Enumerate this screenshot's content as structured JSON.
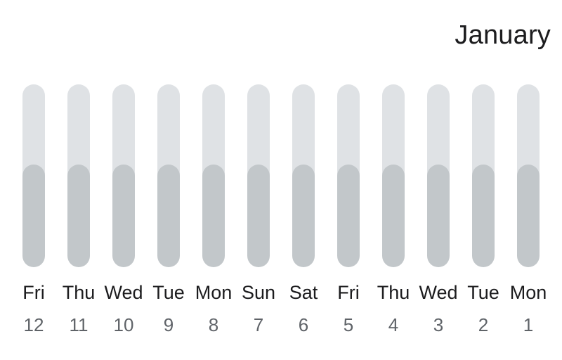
{
  "month": "January",
  "days": [
    {
      "weekday": "Fri",
      "date": "12",
      "level": 0.56
    },
    {
      "weekday": "Thu",
      "date": "11",
      "level": 0.56
    },
    {
      "weekday": "Wed",
      "date": "10",
      "level": 0.56
    },
    {
      "weekday": "Tue",
      "date": "9",
      "level": 0.56
    },
    {
      "weekday": "Mon",
      "date": "8",
      "level": 0.56
    },
    {
      "weekday": "Sun",
      "date": "7",
      "level": 0.56
    },
    {
      "weekday": "Sat",
      "date": "6",
      "level": 0.56
    },
    {
      "weekday": "Fri",
      "date": "5",
      "level": 0.56
    },
    {
      "weekday": "Thu",
      "date": "4",
      "level": 0.56
    },
    {
      "weekday": "Wed",
      "date": "3",
      "level": 0.56
    },
    {
      "weekday": "Tue",
      "date": "2",
      "level": 0.56
    },
    {
      "weekday": "Mon",
      "date": "1",
      "level": 0.56
    }
  ],
  "colors": {
    "track": "#dfe2e5",
    "fill": "#c2c7ca",
    "label": "#1c1c1e",
    "date": "#5f6368"
  }
}
